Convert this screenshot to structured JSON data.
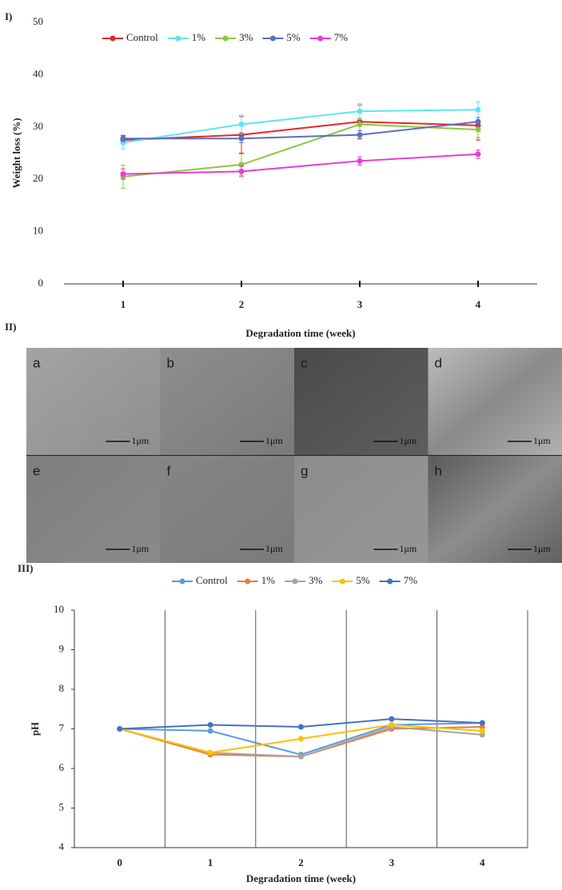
{
  "panel_labels": [
    "I)",
    "II)",
    "III)"
  ],
  "sem_images": [
    {
      "label": "a",
      "scale_bar": "1μm"
    },
    {
      "label": "b",
      "scale_bar": "1μm"
    },
    {
      "label": "c",
      "scale_bar": "1μm"
    },
    {
      "label": "d",
      "scale_bar": "1μm"
    },
    {
      "label": "e",
      "scale_bar": "1μm"
    },
    {
      "label": "f",
      "scale_bar": "1μm"
    },
    {
      "label": "g",
      "scale_bar": "1μm"
    },
    {
      "label": "h",
      "scale_bar": "1μm"
    }
  ],
  "chart_data": [
    {
      "type": "line",
      "y_label": "Weight loss (%)",
      "x_label": "Degradation time (week)",
      "categories": [
        "1",
        "2",
        "3",
        "4"
      ],
      "ylim": [
        0,
        50
      ],
      "yticks": [
        0,
        10,
        20,
        30,
        40,
        50
      ],
      "grid": false,
      "legend": "top",
      "series": [
        {
          "name": "Control",
          "color": "#e8262a",
          "values": [
            27.5,
            28.5,
            31,
            30.3
          ],
          "errors": [
            0.8,
            3.5,
            3.2,
            2.8
          ]
        },
        {
          "name": "1%",
          "color": "#5fe6f0",
          "values": [
            27,
            30.5,
            33,
            33.3
          ],
          "errors": [
            1.2,
            1.8,
            1.5,
            1.5
          ]
        },
        {
          "name": "3%",
          "color": "#8dc63f",
          "values": [
            20.5,
            22.8,
            30.5,
            29.5
          ],
          "errors": [
            2.2,
            2,
            1.2,
            1.5
          ]
        },
        {
          "name": "5%",
          "color": "#5b6fc0",
          "values": [
            27.8,
            27.8,
            28.5,
            31
          ],
          "errors": [
            0.6,
            0.8,
            0.8,
            0.8
          ]
        },
        {
          "name": "7%",
          "color": "#e83ad8",
          "values": [
            21,
            21.5,
            23.5,
            24.8
          ],
          "errors": [
            1,
            1,
            0.8,
            0.8
          ]
        }
      ]
    },
    {
      "type": "line",
      "y_label": "pH",
      "x_label": "Degradation time (week)",
      "categories": [
        "0",
        "1",
        "2",
        "3",
        "4"
      ],
      "ylim": [
        4,
        10
      ],
      "yticks": [
        4,
        5,
        6,
        7,
        8,
        9,
        10
      ],
      "grid": "vertical",
      "legend": "top",
      "series": [
        {
          "name": "Control",
          "color": "#5b9bd5",
          "values": [
            7.0,
            6.95,
            6.35,
            7.1,
            7.15
          ]
        },
        {
          "name": "1%",
          "color": "#ed7d31",
          "values": [
            7.0,
            6.35,
            6.3,
            7.0,
            7.05
          ]
        },
        {
          "name": "3%",
          "color": "#a5a5a5",
          "values": [
            7.0,
            6.4,
            6.3,
            7.05,
            6.85
          ]
        },
        {
          "name": "5%",
          "color": "#ffc000",
          "values": [
            7.0,
            6.4,
            6.75,
            7.1,
            6.95
          ]
        },
        {
          "name": "7%",
          "color": "#4472c4",
          "values": [
            7.0,
            7.1,
            7.05,
            7.25,
            7.15
          ]
        }
      ]
    }
  ]
}
